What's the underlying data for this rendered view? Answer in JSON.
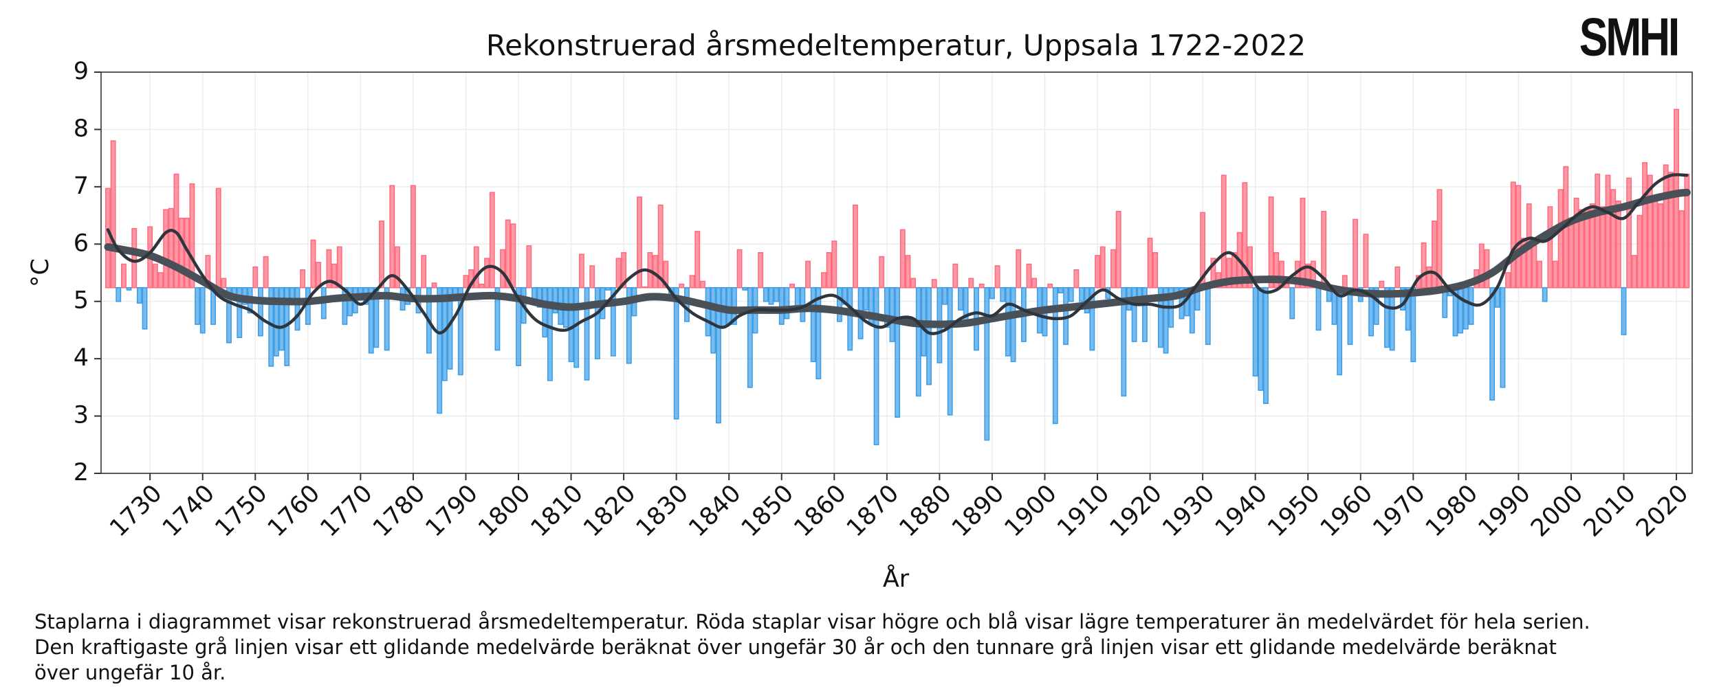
{
  "header": {
    "logo": "SMHI"
  },
  "footnote": [
    "Staplarna i diagrammet visar rekonstruerad årsmedeltemperatur. Röda staplar visar högre och blå visar lägre temperaturer än medelvärdet för hela serien.",
    "Den kraftigaste grå linjen visar ett glidande medelvärde beräknat över ungefär 30 år och den tunnare grå linjen visar ett glidande medelvärde beräknat",
    "över ungefär 10 år."
  ],
  "chart_data": {
    "type": "bar",
    "title": "Rekonstruerad årsmedeltemperatur, Uppsala 1722-2022",
    "xlabel": "År",
    "ylabel": "°C",
    "colors": {
      "above": "#ff6b7e",
      "below": "#3d9ee8"
    },
    "xlim": [
      1720.7,
      2023
    ],
    "ylim": [
      2,
      9
    ],
    "xticks": [
      1730,
      1740,
      1750,
      1760,
      1770,
      1780,
      1790,
      1800,
      1810,
      1820,
      1830,
      1840,
      1850,
      1860,
      1870,
      1880,
      1890,
      1900,
      1910,
      1920,
      1930,
      1940,
      1950,
      1960,
      1970,
      1980,
      1990,
      2000,
      2010,
      2020
    ],
    "yticks": [
      2,
      3,
      4,
      5,
      6,
      7,
      8,
      9
    ],
    "grid": true,
    "x": [
      1722,
      1723,
      1724,
      1725,
      1726,
      1727,
      1728,
      1729,
      1730,
      1731,
      1732,
      1733,
      1734,
      1735,
      1736,
      1737,
      1738,
      1739,
      1740,
      1741,
      1742,
      1743,
      1744,
      1745,
      1746,
      1747,
      1748,
      1749,
      1750,
      1751,
      1752,
      1753,
      1754,
      1755,
      1756,
      1757,
      1758,
      1759,
      1760,
      1761,
      1762,
      1763,
      1764,
      1765,
      1766,
      1767,
      1768,
      1769,
      1770,
      1771,
      1772,
      1773,
      1774,
      1775,
      1776,
      1777,
      1778,
      1779,
      1780,
      1781,
      1782,
      1783,
      1784,
      1785,
      1786,
      1787,
      1788,
      1789,
      1790,
      1791,
      1792,
      1793,
      1794,
      1795,
      1796,
      1797,
      1798,
      1799,
      1800,
      1801,
      1802,
      1803,
      1804,
      1805,
      1806,
      1807,
      1808,
      1809,
      1810,
      1811,
      1812,
      1813,
      1814,
      1815,
      1816,
      1817,
      1818,
      1819,
      1820,
      1821,
      1822,
      1823,
      1824,
      1825,
      1826,
      1827,
      1828,
      1829,
      1830,
      1831,
      1832,
      1833,
      1834,
      1835,
      1836,
      1837,
      1838,
      1839,
      1840,
      1841,
      1842,
      1843,
      1844,
      1845,
      1846,
      1847,
      1848,
      1849,
      1850,
      1851,
      1852,
      1853,
      1854,
      1855,
      1856,
      1857,
      1858,
      1859,
      1860,
      1861,
      1862,
      1863,
      1864,
      1865,
      1866,
      1867,
      1868,
      1869,
      1870,
      1871,
      1872,
      1873,
      1874,
      1875,
      1876,
      1877,
      1878,
      1879,
      1880,
      1881,
      1882,
      1883,
      1884,
      1885,
      1886,
      1887,
      1888,
      1889,
      1890,
      1891,
      1892,
      1893,
      1894,
      1895,
      1896,
      1897,
      1898,
      1899,
      1900,
      1901,
      1902,
      1903,
      1904,
      1905,
      1906,
      1907,
      1908,
      1909,
      1910,
      1911,
      1912,
      1913,
      1914,
      1915,
      1916,
      1917,
      1918,
      1919,
      1920,
      1921,
      1922,
      1923,
      1924,
      1925,
      1926,
      1927,
      1928,
      1929,
      1930,
      1931,
      1932,
      1933,
      1934,
      1935,
      1936,
      1937,
      1938,
      1939,
      1940,
      1941,
      1942,
      1943,
      1944,
      1945,
      1946,
      1947,
      1948,
      1949,
      1950,
      1951,
      1952,
      1953,
      1954,
      1955,
      1956,
      1957,
      1958,
      1959,
      1960,
      1961,
      1962,
      1963,
      1964,
      1965,
      1966,
      1967,
      1968,
      1969,
      1970,
      1971,
      1972,
      1973,
      1974,
      1975,
      1976,
      1977,
      1978,
      1979,
      1980,
      1981,
      1982,
      1983,
      1984,
      1985,
      1986,
      1987,
      1988,
      1989,
      1990,
      1991,
      1992,
      1993,
      1994,
      1995,
      1996,
      1997,
      1998,
      1999,
      2000,
      2001,
      2002,
      2003,
      2004,
      2005,
      2006,
      2007,
      2008,
      2009,
      2010,
      2011,
      2012,
      2013,
      2014,
      2015,
      2016,
      2017,
      2018,
      2019,
      2020,
      2021,
      2022
    ],
    "values": [
      6.97,
      7.8,
      5.0,
      5.65,
      5.2,
      6.27,
      4.97,
      4.52,
      6.3,
      5.65,
      5.5,
      6.6,
      6.62,
      7.22,
      6.45,
      6.45,
      7.05,
      4.6,
      4.45,
      5.8,
      4.6,
      6.97,
      5.4,
      4.28,
      5.1,
      4.37,
      4.95,
      4.8,
      5.6,
      4.4,
      5.78,
      3.87,
      4.05,
      4.15,
      3.88,
      5.0,
      4.5,
      5.55,
      4.6,
      6.07,
      5.68,
      4.7,
      5.9,
      5.65,
      5.95,
      4.6,
      4.75,
      4.8,
      5.1,
      4.95,
      4.1,
      4.2,
      6.4,
      4.15,
      7.02,
      5.95,
      4.85,
      4.95,
      7.02,
      4.8,
      5.8,
      4.1,
      5.32,
      3.05,
      3.62,
      3.82,
      5.1,
      3.72,
      5.45,
      5.55,
      5.95,
      5.3,
      5.75,
      6.9,
      4.15,
      5.9,
      6.42,
      6.35,
      3.88,
      4.62,
      5.97,
      5.0,
      4.9,
      4.38,
      3.62,
      4.8,
      4.6,
      4.55,
      3.95,
      3.85,
      5.82,
      3.63,
      5.62,
      4.0,
      4.7,
      5.2,
      4.05,
      5.75,
      5.85,
      3.92,
      4.75,
      6.82,
      5.25,
      5.85,
      5.8,
      6.68,
      5.7,
      5.1,
      2.95,
      5.3,
      4.65,
      5.45,
      6.22,
      5.35,
      4.4,
      4.1,
      2.88,
      4.55,
      4.6,
      4.6,
      5.9,
      5.2,
      3.5,
      4.45,
      5.85,
      5.0,
      4.95,
      5.0,
      4.6,
      4.7,
      5.3,
      4.9,
      4.65,
      5.7,
      3.95,
      3.65,
      5.5,
      5.85,
      6.05,
      4.65,
      4.95,
      4.15,
      6.68,
      4.35,
      4.85,
      4.6,
      2.5,
      5.78,
      4.55,
      4.3,
      2.98,
      6.25,
      5.8,
      5.4,
      3.35,
      4.05,
      3.55,
      5.38,
      3.93,
      4.95,
      3.02,
      5.65,
      4.85,
      4.6,
      5.4,
      4.15,
      5.3,
      2.58,
      5.05,
      5.62,
      5.0,
      4.05,
      3.95,
      5.9,
      4.3,
      5.65,
      5.4,
      4.45,
      4.4,
      5.3,
      2.87,
      5.15,
      4.25,
      5.0,
      5.55,
      5.0,
      4.8,
      4.15,
      5.8,
      5.95,
      5.05,
      5.9,
      6.57,
      3.35,
      4.85,
      4.3,
      5.05,
      4.3,
      6.1,
      5.85,
      4.2,
      4.1,
      4.55,
      5.1,
      4.7,
      4.75,
      4.45,
      4.85,
      6.55,
      4.25,
      5.75,
      5.5,
      7.2,
      5.75,
      5.85,
      6.2,
      7.07,
      5.95,
      3.7,
      3.45,
      3.22,
      6.82,
      5.85,
      5.7,
      5.3,
      4.7,
      5.7,
      6.8,
      5.65,
      5.7,
      4.5,
      6.57,
      5.0,
      4.6,
      3.72,
      5.45,
      4.25,
      6.43,
      5.0,
      6.17,
      4.4,
      4.6,
      5.35,
      4.2,
      4.15,
      5.6,
      4.85,
      4.5,
      3.95,
      5.45,
      6.02,
      5.6,
      6.4,
      6.95,
      4.72,
      5.1,
      4.4,
      4.45,
      4.52,
      4.6,
      5.55,
      6.0,
      5.9,
      3.28,
      4.9,
      3.5,
      5.5,
      7.08,
      7.02,
      6.1,
      6.7,
      6.05,
      5.7,
      5.0,
      6.65,
      5.7,
      6.95,
      7.35,
      6.45,
      6.8,
      6.6,
      6.6,
      6.7,
      7.22,
      6.65,
      7.2,
      6.95,
      6.75,
      4.42,
      7.15,
      5.8,
      6.5,
      7.42,
      7.2,
      6.8,
      6.7,
      7.38,
      7.25,
      8.35,
      6.58,
      7.22
    ],
    "lines": [
      {
        "color": "#4a5058",
        "x": [
          1722,
          1725,
          1730,
          1735,
          1740,
          1745,
          1750,
          1755,
          1760,
          1765,
          1770,
          1775,
          1780,
          1785,
          1790,
          1795,
          1800,
          1805,
          1810,
          1815,
          1820,
          1825,
          1830,
          1835,
          1840,
          1845,
          1850,
          1855,
          1860,
          1865,
          1870,
          1875,
          1880,
          1885,
          1890,
          1895,
          1900,
          1905,
          1910,
          1915,
          1920,
          1925,
          1930,
          1935,
          1940,
          1945,
          1950,
          1955,
          1960,
          1965,
          1970,
          1975,
          1980,
          1985,
          1990,
          1995,
          2000,
          2005,
          2010,
          2015,
          2020,
          2022
        ],
        "values": [
          5.95,
          5.9,
          5.8,
          5.6,
          5.35,
          5.1,
          5.02,
          5.0,
          5.0,
          5.05,
          5.08,
          5.1,
          5.05,
          5.05,
          5.08,
          5.1,
          5.05,
          4.95,
          4.9,
          4.95,
          5.0,
          5.08,
          5.05,
          4.95,
          4.85,
          4.85,
          4.85,
          4.88,
          4.85,
          4.78,
          4.7,
          4.62,
          4.6,
          4.62,
          4.7,
          4.78,
          4.85,
          4.9,
          4.95,
          5.0,
          5.05,
          5.1,
          5.25,
          5.35,
          5.38,
          5.38,
          5.33,
          5.22,
          5.15,
          5.13,
          5.15,
          5.2,
          5.3,
          5.5,
          5.85,
          6.15,
          6.4,
          6.55,
          6.65,
          6.78,
          6.88,
          6.9
        ]
      },
      {
        "color": "#2f353c",
        "x": [
          1722,
          1724,
          1727,
          1730,
          1733,
          1735,
          1737,
          1740,
          1743,
          1746,
          1749,
          1752,
          1755,
          1758,
          1761,
          1764,
          1767,
          1770,
          1773,
          1776,
          1779,
          1782,
          1785,
          1788,
          1791,
          1794,
          1797,
          1800,
          1803,
          1806,
          1809,
          1812,
          1815,
          1818,
          1821,
          1824,
          1827,
          1830,
          1833,
          1836,
          1839,
          1842,
          1845,
          1848,
          1851,
          1854,
          1857,
          1860,
          1863,
          1866,
          1869,
          1872,
          1875,
          1878,
          1881,
          1884,
          1887,
          1890,
          1893,
          1896,
          1899,
          1902,
          1905,
          1908,
          1911,
          1914,
          1917,
          1920,
          1923,
          1926,
          1929,
          1932,
          1935,
          1938,
          1941,
          1944,
          1947,
          1950,
          1953,
          1956,
          1959,
          1962,
          1965,
          1968,
          1971,
          1974,
          1977,
          1980,
          1983,
          1986,
          1989,
          1992,
          1995,
          1998,
          2001,
          2004,
          2007,
          2010,
          2013,
          2016,
          2019,
          2022
        ],
        "values": [
          6.25,
          5.9,
          5.7,
          5.85,
          6.2,
          6.2,
          5.9,
          5.45,
          5.1,
          4.95,
          4.85,
          4.65,
          4.55,
          4.75,
          5.15,
          5.35,
          5.2,
          4.95,
          5.2,
          5.45,
          5.2,
          4.8,
          4.45,
          4.75,
          5.3,
          5.6,
          5.5,
          5.05,
          4.7,
          4.55,
          4.5,
          4.65,
          4.8,
          5.1,
          5.4,
          5.55,
          5.4,
          5.05,
          4.8,
          4.65,
          4.55,
          4.75,
          4.85,
          4.85,
          4.85,
          4.9,
          5.05,
          5.1,
          4.9,
          4.65,
          4.55,
          4.7,
          4.7,
          4.45,
          4.5,
          4.7,
          4.8,
          4.75,
          4.95,
          4.85,
          4.75,
          4.7,
          4.75,
          5.0,
          5.2,
          5.05,
          4.95,
          4.95,
          4.9,
          4.95,
          5.3,
          5.65,
          5.85,
          5.6,
          5.2,
          5.2,
          5.45,
          5.6,
          5.4,
          5.1,
          5.2,
          5.1,
          4.9,
          4.95,
          5.4,
          5.5,
          5.2,
          5.0,
          4.95,
          5.25,
          5.9,
          6.1,
          6.05,
          6.25,
          6.5,
          6.65,
          6.55,
          6.45,
          6.75,
          7.05,
          7.2,
          7.2
        ]
      }
    ]
  }
}
